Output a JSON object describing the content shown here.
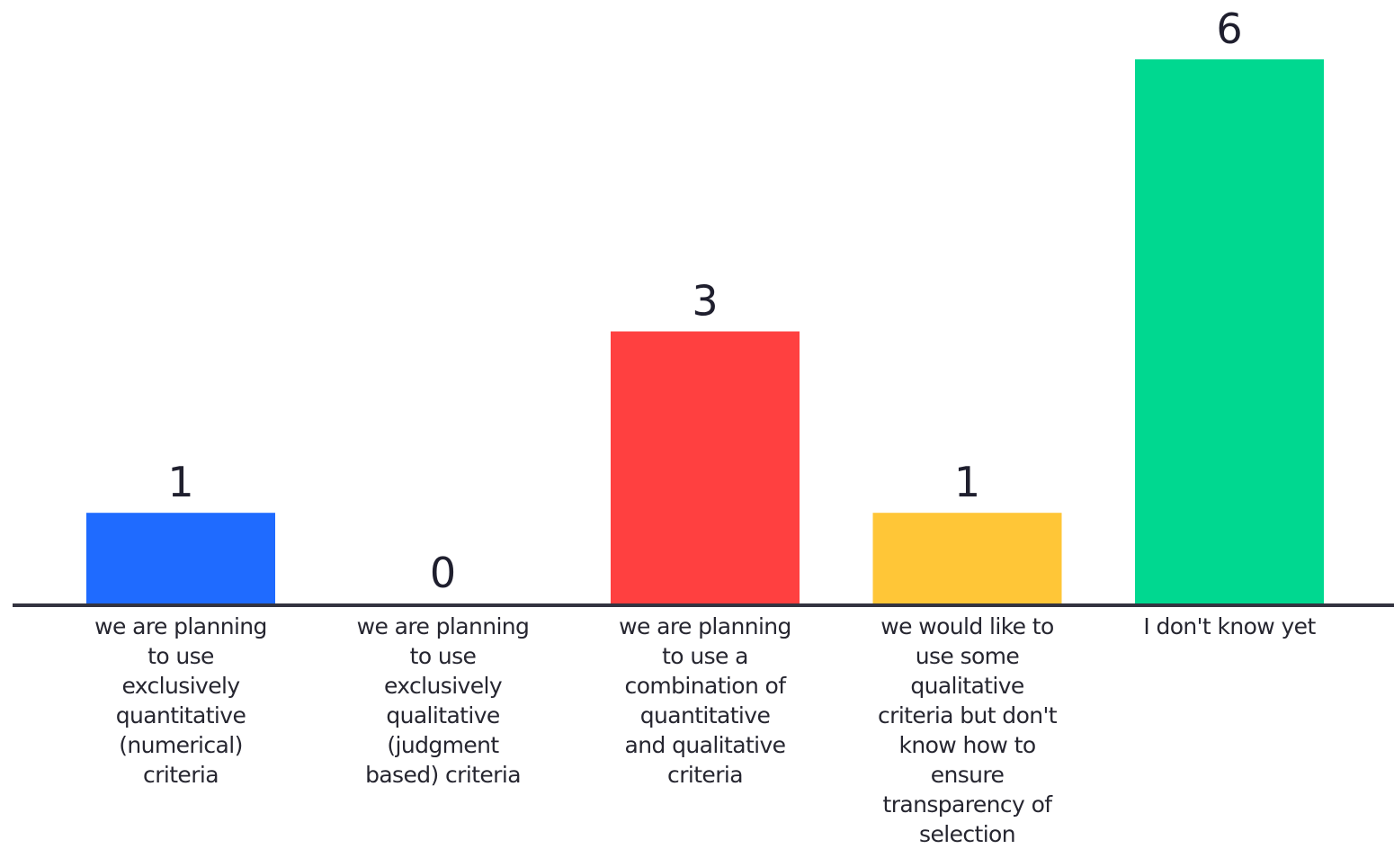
{
  "chart_data": {
    "type": "bar",
    "title": "",
    "xlabel": "",
    "ylabel": "",
    "ylim": [
      0,
      6
    ],
    "grid": false,
    "legend": "none",
    "categories": [
      [
        "we are planning",
        "to use",
        "exclusively",
        "quantitative",
        "(numerical)",
        "criteria"
      ],
      [
        "we are planning",
        "to use",
        "exclusively",
        "qualitative",
        "(judgment",
        "based) criteria"
      ],
      [
        "we are planning",
        "to use a",
        "combination of",
        "quantitative",
        "and qualitative",
        "criteria"
      ],
      [
        "we would like to",
        "use some",
        "qualitative",
        "criteria but don't",
        "know how to",
        "ensure",
        "transparency of",
        "selection"
      ],
      [
        "I don't know yet"
      ]
    ],
    "values": [
      1,
      0,
      3,
      1,
      6
    ],
    "colors": [
      "#1f6bff",
      "#1f6bff",
      "#ff4040",
      "#ffc637",
      "#00d890"
    ],
    "axis_color": "#333340"
  }
}
